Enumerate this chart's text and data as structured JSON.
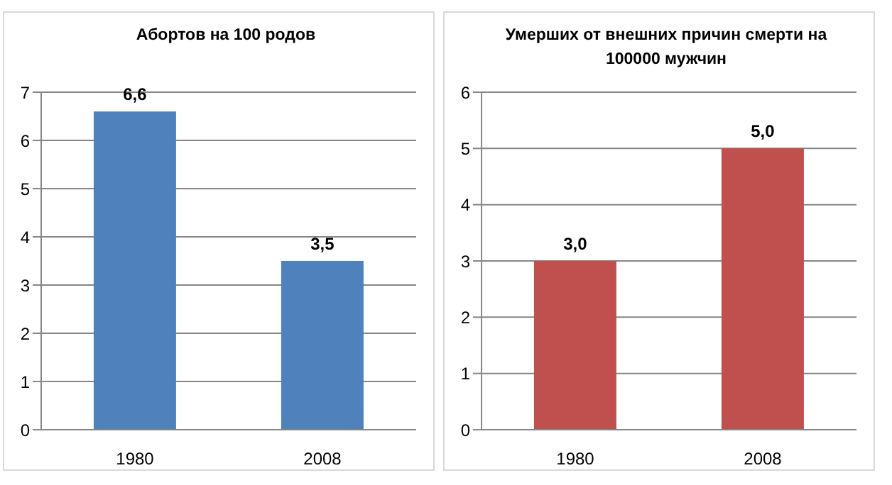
{
  "chart_data": [
    {
      "type": "bar",
      "title": "Абортов на 100 родов",
      "categories": [
        "1980",
        "2008"
      ],
      "series": [
        {
          "color": "#4f81bd",
          "values": [
            6.6,
            3.5
          ],
          "value_labels": [
            "6,6",
            "3,5"
          ]
        }
      ],
      "ylim": [
        0,
        7
      ],
      "yticks": [
        0,
        1,
        2,
        3,
        4,
        5,
        6,
        7
      ],
      "grid": "y"
    },
    {
      "type": "bar",
      "title": "Умерших от внешних причин смерти на 100000 мужчин",
      "categories": [
        "1980",
        "2008"
      ],
      "series": [
        {
          "color": "#c0504d",
          "values": [
            3.0,
            5.0
          ],
          "value_labels": [
            "3,0",
            "5,0"
          ]
        }
      ],
      "ylim": [
        0,
        6
      ],
      "yticks": [
        0,
        1,
        2,
        3,
        4,
        5,
        6
      ],
      "grid": "y"
    }
  ]
}
